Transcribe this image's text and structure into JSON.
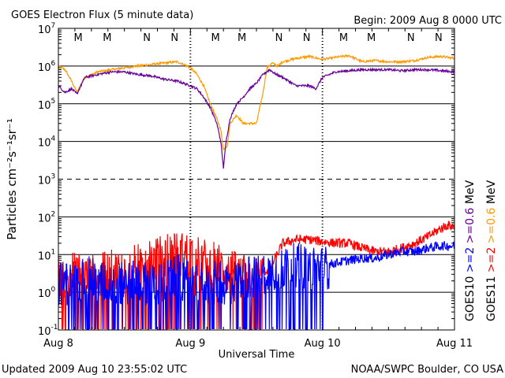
{
  "header": {
    "title": "GOES Electron Flux (5 minute data)",
    "begin": "Begin: 2009 Aug 8 0000 UTC"
  },
  "footer": {
    "updated": "Updated 2009 Aug 10 23:55:02 UTC",
    "credit": "NOAA/SWPC Boulder, CO USA"
  },
  "colors": {
    "goes10_high": "#0000ff",
    "goes10_low": "#660099",
    "goes11_high": "#ff0000",
    "goes11_low": "#ff9900",
    "M": "#0000ff",
    "N": "#ff0000"
  },
  "chart_data": {
    "type": "line",
    "xlabel": "Universal Time",
    "ylabel": "Particles cm⁻²s⁻¹sr⁻¹",
    "x_unit": "days since 2009 Aug 8 0000 UTC",
    "xlim": [
      0,
      3
    ],
    "ylim": [
      0.1,
      10000000
    ],
    "y_scale": "log",
    "x_ticks": [
      {
        "x": 0,
        "label": "Aug 8"
      },
      {
        "x": 1,
        "label": "Aug 9"
      },
      {
        "x": 2,
        "label": "Aug 10"
      },
      {
        "x": 3,
        "label": "Aug 11"
      }
    ],
    "y_ticks": [
      {
        "base": "10",
        "exp": "-1"
      },
      {
        "base": "10",
        "exp": "0"
      },
      {
        "base": "10",
        "exp": "1"
      },
      {
        "base": "10",
        "exp": "2"
      },
      {
        "base": "10",
        "exp": "3"
      },
      {
        "base": "10",
        "exp": "4"
      },
      {
        "base": "10",
        "exp": "5"
      },
      {
        "base": "10",
        "exp": "6"
      },
      {
        "base": "10",
        "exp": "7"
      }
    ],
    "threshold_y": 1000,
    "mn_markers": [
      {
        "label": "M",
        "x": 0.15,
        "color": "#0000ff"
      },
      {
        "label": "M",
        "x": 0.37,
        "color": "#ff0000"
      },
      {
        "label": "N",
        "x": 0.67,
        "color": "#0000ff"
      },
      {
        "label": "N",
        "x": 0.88,
        "color": "#ff0000"
      },
      {
        "label": "M",
        "x": 1.19,
        "color": "#0000ff"
      },
      {
        "label": "M",
        "x": 1.39,
        "color": "#ff0000"
      },
      {
        "label": "N",
        "x": 1.67,
        "color": "#0000ff"
      },
      {
        "label": "N",
        "x": 1.88,
        "color": "#ff0000"
      },
      {
        "label": "M",
        "x": 2.16,
        "color": "#0000ff"
      },
      {
        "label": "M",
        "x": 2.37,
        "color": "#ff0000"
      },
      {
        "label": "N",
        "x": 2.67,
        "color": "#0000ff"
      },
      {
        "label": "N",
        "x": 2.88,
        "color": "#ff0000"
      }
    ],
    "right_legend": [
      {
        "text": "MeV",
        "color": "#000000"
      },
      {
        "text": ">=0.6",
        "color": "#660099"
      },
      {
        "text": ">=2",
        "color": "#0000ff"
      },
      {
        "text": "GOES10",
        "color": "#000000"
      },
      {
        "text": "MeV",
        "color": "#000000"
      },
      {
        "text": ">=0.6",
        "color": "#ff9900"
      },
      {
        "text": ">=2",
        "color": "#ff0000"
      },
      {
        "text": "GOES11",
        "color": "#000000"
      }
    ],
    "series": [
      {
        "name": "GOES11 >=0.6 MeV",
        "color": "#ff9900",
        "x": [
          0,
          0.05,
          0.1,
          0.14,
          0.2,
          0.3,
          0.4,
          0.5,
          0.6,
          0.7,
          0.8,
          0.9,
          0.95,
          1.0,
          1.05,
          1.1,
          1.15,
          1.2,
          1.23,
          1.25,
          1.28,
          1.3,
          1.35,
          1.4,
          1.5,
          1.55,
          1.58,
          1.62,
          1.66,
          1.7,
          1.8,
          1.9,
          2.0,
          2.1,
          2.2,
          2.3,
          2.4,
          2.5,
          2.6,
          2.7,
          2.8,
          2.9,
          3.0
        ],
        "y": [
          1000000,
          800000,
          400000,
          200000,
          500000,
          700000,
          800000,
          900000,
          1000000,
          1100000,
          1200000,
          1300000,
          1100000,
          900000,
          600000,
          300000,
          100000,
          40000,
          20000,
          6000,
          8000,
          30000,
          50000,
          30000,
          30000,
          200000,
          900000,
          1200000,
          1000000,
          1300000,
          1600000,
          1800000,
          1500000,
          1700000,
          1900000,
          1300000,
          1400000,
          1300000,
          1300000,
          1400000,
          1700000,
          1800000,
          1600000
        ]
      },
      {
        "name": "GOES10 >=0.6 MeV",
        "color": "#660099",
        "x": [
          0,
          0.05,
          0.1,
          0.14,
          0.2,
          0.3,
          0.4,
          0.5,
          0.6,
          0.7,
          0.8,
          0.9,
          1.0,
          1.05,
          1.1,
          1.15,
          1.2,
          1.23,
          1.25,
          1.27,
          1.3,
          1.35,
          1.4,
          1.45,
          1.5,
          1.55,
          1.6,
          1.65,
          1.7,
          1.8,
          1.9,
          1.95,
          2.0,
          2.1,
          2.2,
          2.3,
          2.4,
          2.5,
          2.6,
          2.7,
          2.8,
          2.9,
          3.0
        ],
        "y": [
          300000,
          200000,
          250000,
          180000,
          500000,
          600000,
          700000,
          700000,
          600000,
          550000,
          450000,
          400000,
          300000,
          250000,
          150000,
          80000,
          30000,
          10000,
          2000,
          10000,
          40000,
          100000,
          150000,
          250000,
          350000,
          600000,
          800000,
          600000,
          500000,
          300000,
          300000,
          250000,
          500000,
          700000,
          750000,
          800000,
          800000,
          800000,
          750000,
          800000,
          800000,
          750000,
          700000
        ]
      },
      {
        "name": "GOES11 >=2 MeV",
        "color": "#ff0000",
        "x": [
          0,
          0.05,
          0.1,
          0.2,
          0.3,
          0.4,
          0.5,
          0.6,
          0.7,
          0.8,
          0.9,
          1.0,
          1.1,
          1.2,
          1.3,
          1.4,
          1.5,
          1.6,
          1.7,
          1.8,
          1.9,
          2.0,
          2.1,
          2.2,
          2.3,
          2.4,
          2.5,
          2.6,
          2.7,
          2.8,
          2.9,
          2.95,
          3.0
        ],
        "y": [
          3,
          2,
          4,
          3,
          3,
          4,
          4,
          6,
          8,
          10,
          12,
          12,
          8,
          6,
          4,
          3,
          3,
          4,
          20,
          25,
          25,
          22,
          20,
          20,
          15,
          12,
          12,
          15,
          20,
          30,
          50,
          60,
          55
        ],
        "noisy_until": 1.55
      },
      {
        "name": "GOES10 >=2 MeV",
        "color": "#0000ff",
        "x": [
          0,
          0.1,
          0.2,
          0.3,
          0.4,
          0.5,
          0.6,
          0.7,
          0.8,
          0.9,
          1.0,
          1.1,
          1.2,
          1.3,
          1.4,
          1.5,
          1.6,
          1.7,
          1.8,
          1.9,
          2.0,
          2.1,
          2.2,
          2.3,
          2.4,
          2.5,
          2.6,
          2.7,
          2.8,
          2.9,
          3.0
        ],
        "y": [
          2,
          2,
          3,
          2,
          2,
          2,
          2,
          2,
          2,
          3,
          2,
          2,
          2,
          2,
          3,
          3,
          5,
          5,
          6,
          5,
          5,
          6,
          7,
          8,
          8,
          10,
          12,
          12,
          15,
          17,
          17
        ],
        "noisy_until": 2.05
      }
    ]
  }
}
